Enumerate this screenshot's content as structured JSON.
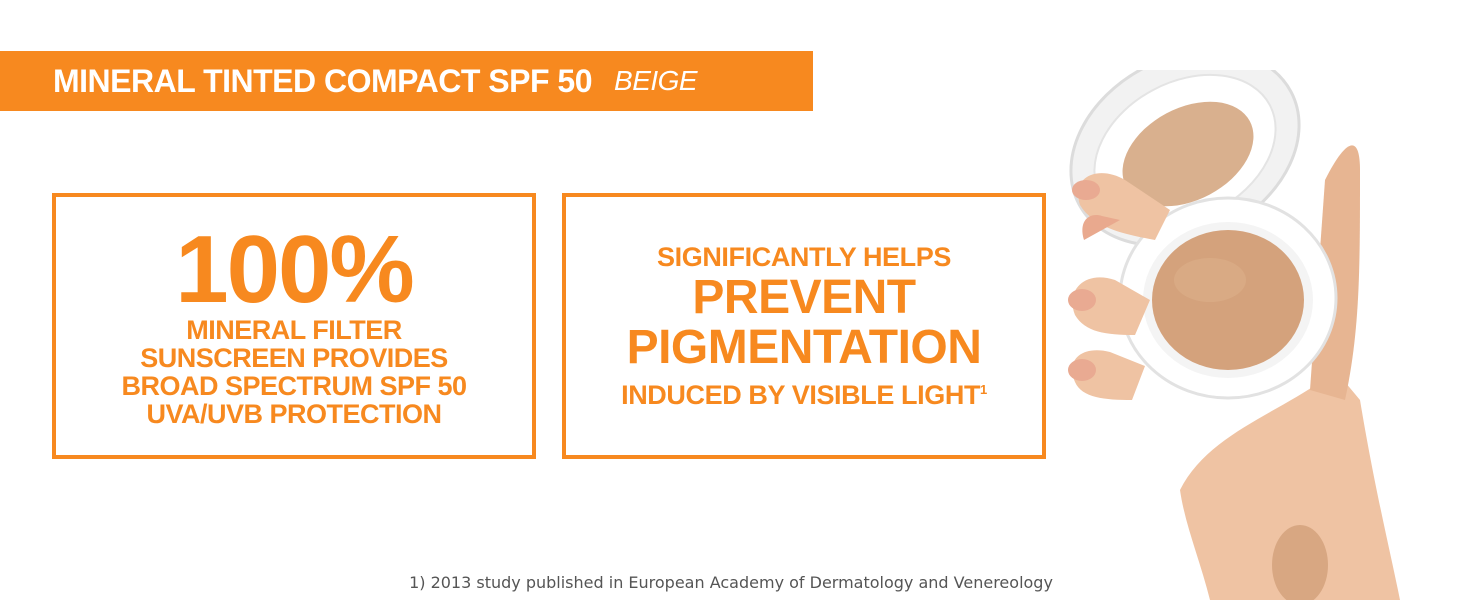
{
  "banner": {
    "title": "MINERAL TINTED COMPACT SPF 50",
    "variant": "BEIGE"
  },
  "claim_left": {
    "stat": "100%",
    "lines": [
      "MINERAL FILTER",
      "SUNSCREEN PROVIDES",
      "BROAD SPECTRUM SPF 50",
      "UVA/UVB PROTECTION"
    ]
  },
  "claim_right": {
    "lead": "SIGNIFICANTLY HELPS",
    "emphasis": [
      "PREVENT",
      "PIGMENTATION"
    ],
    "tail": "INDUCED BY VISIBLE LIGHT",
    "footnote_marker": "1"
  },
  "footnote": "1) 2013 study published in European Academy of Dermatology and Venereology",
  "colors": {
    "accent": "#f7891f",
    "compact_shade": "#d4a27c",
    "skin": "#efc3a3"
  },
  "image": {
    "subject": "hand-holding-open-compact-icon"
  }
}
